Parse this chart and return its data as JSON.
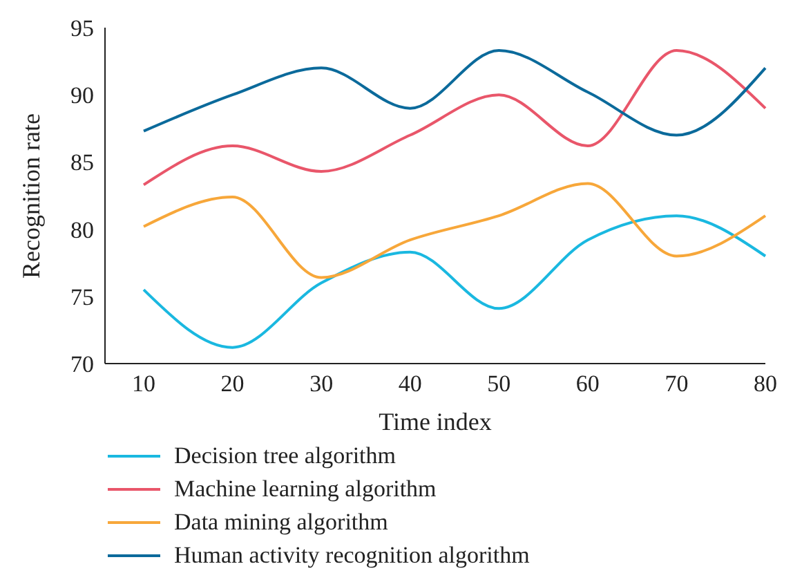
{
  "chart_data": {
    "type": "line",
    "xlabel": "Time index",
    "ylabel": "Recognition rate",
    "categories": [
      "10",
      "20",
      "30",
      "40",
      "50",
      "60",
      "70",
      "80"
    ],
    "series": [
      {
        "name": "Decision tree algorithm",
        "color": "#1ab8e0",
        "values": [
          75.5,
          71.2,
          76,
          78.3,
          74.1,
          79.2,
          81,
          78
        ]
      },
      {
        "name": "Machine learning algorithm",
        "color": "#e9566a",
        "values": [
          83.3,
          86.2,
          84.3,
          87,
          90,
          86.2,
          93.3,
          89
        ]
      },
      {
        "name": "Data mining algorithm",
        "color": "#f7a73a",
        "values": [
          80.2,
          82.4,
          76.4,
          79.2,
          81,
          83.4,
          78,
          81
        ]
      },
      {
        "name": "Human activity recognition algorithm",
        "color": "#0b6a9b",
        "values": [
          87.3,
          90,
          92,
          89,
          93.3,
          90.2,
          87,
          92
        ]
      }
    ],
    "ylim": [
      70,
      95
    ],
    "yticks": [
      70,
      75,
      80,
      85,
      90,
      95
    ],
    "grid": false,
    "legend": "bottom",
    "marker": "none",
    "line_style": "solid"
  }
}
